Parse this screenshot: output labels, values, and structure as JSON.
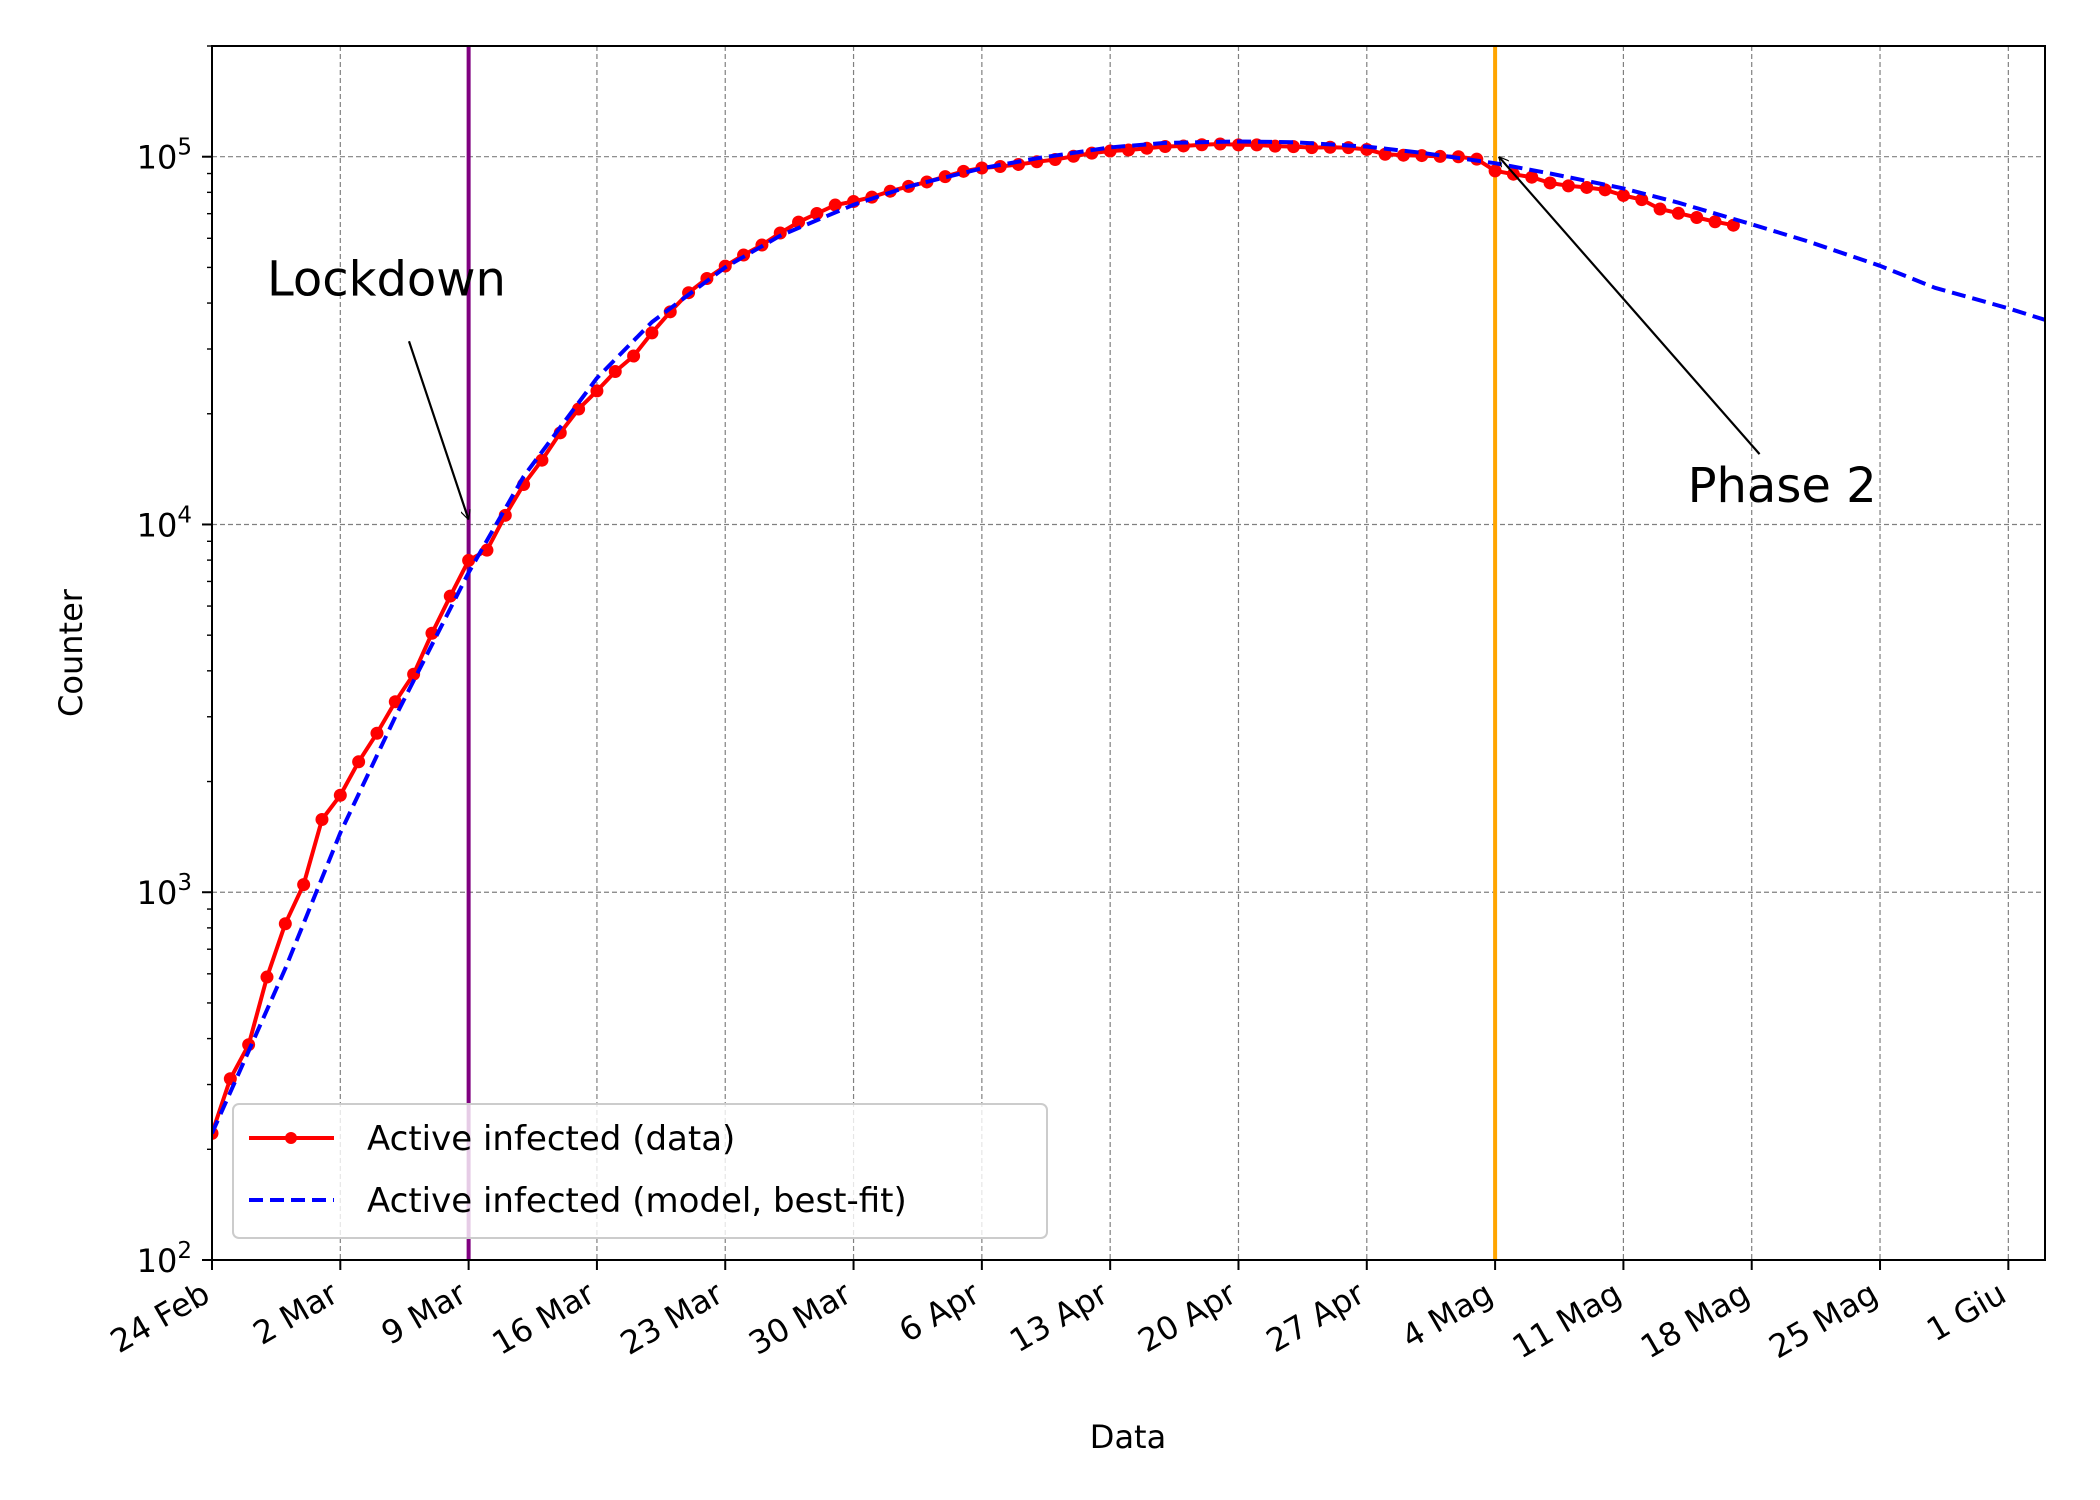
{
  "chart_data": {
    "type": "line",
    "title": "",
    "xlabel": "Data",
    "ylabel": "Counter",
    "yscale": "log",
    "ylim": [
      100,
      200000
    ],
    "xlim_days_from_24feb": [
      0,
      100
    ],
    "grid": true,
    "legend_position": "lower-left",
    "x_ticks": [
      {
        "day": 0,
        "label": "24 Feb"
      },
      {
        "day": 7,
        "label": "2 Mar"
      },
      {
        "day": 14,
        "label": "9 Mar"
      },
      {
        "day": 21,
        "label": "16 Mar"
      },
      {
        "day": 28,
        "label": "23 Mar"
      },
      {
        "day": 35,
        "label": "30 Mar"
      },
      {
        "day": 42,
        "label": "6 Apr"
      },
      {
        "day": 49,
        "label": "13 Apr"
      },
      {
        "day": 56,
        "label": "20 Apr"
      },
      {
        "day": 63,
        "label": "27 Apr"
      },
      {
        "day": 70,
        "label": "4 Mag"
      },
      {
        "day": 77,
        "label": "11 Mag"
      },
      {
        "day": 84,
        "label": "18 Mag"
      },
      {
        "day": 91,
        "label": "25 Mag"
      },
      {
        "day": 98,
        "label": "1 Giu"
      }
    ],
    "y_ticks": [
      {
        "value": 100,
        "base": "10",
        "exp": "2"
      },
      {
        "value": 1000,
        "base": "10",
        "exp": "3"
      },
      {
        "value": 10000,
        "base": "10",
        "exp": "4"
      },
      {
        "value": 100000,
        "base": "10",
        "exp": "5"
      }
    ],
    "series": [
      {
        "name": "Active infected (data)",
        "color": "#ff0000",
        "style": "solid-with-dots",
        "x_days_from_24feb": [
          0,
          1,
          2,
          3,
          4,
          5,
          6,
          7,
          8,
          9,
          10,
          11,
          12,
          13,
          14,
          15,
          16,
          17,
          18,
          19,
          20,
          21,
          22,
          23,
          24,
          25,
          26,
          27,
          28,
          29,
          30,
          31,
          32,
          33,
          34,
          35,
          36,
          37,
          38,
          39,
          40,
          41,
          42,
          43,
          44,
          45,
          46,
          47,
          48,
          49,
          50,
          51,
          52,
          53,
          54,
          55,
          56,
          57,
          58,
          59,
          60,
          61,
          62,
          63,
          64,
          65,
          66,
          67,
          68,
          69,
          70,
          71,
          72,
          73,
          74,
          75,
          76,
          77,
          78,
          79,
          80,
          81,
          82,
          83
        ],
        "y": [
          221,
          311,
          385,
          588,
          821,
          1049,
          1577,
          1835,
          2263,
          2706,
          3296,
          3916,
          5061,
          6387,
          7985,
          8514,
          10590,
          12839,
          14955,
          17750,
          20603,
          23073,
          26062,
          28710,
          33190,
          37860,
          42681,
          46638,
          50418,
          54030,
          57521,
          62013,
          66414,
          70065,
          73880,
          75528,
          77635,
          80572,
          83049,
          85388,
          88274,
          91246,
          93187,
          94067,
          95262,
          96877,
          98273,
          100269,
          102253,
          103616,
          104291,
          105418,
          106607,
          106962,
          107771,
          108257,
          107709,
          107699,
          106848,
          106527,
          105847,
          106103,
          105813,
          104657,
          101551,
          100943,
          100704,
          100179,
          99980,
          98467,
          91528,
          89624,
          87961,
          84842,
          83324,
          82488,
          81266,
          78457,
          76440,
          72070,
          70187,
          68351,
          66553,
          65129
        ]
      },
      {
        "name": "Active infected (model, best-fit)",
        "color": "#0000ff",
        "style": "dashed",
        "x_days_from_24feb": [
          0,
          2,
          4,
          7,
          10,
          14,
          17,
          21,
          24,
          28,
          31,
          35,
          38,
          42,
          45,
          49,
          52,
          56,
          59,
          63,
          66,
          70,
          73,
          77,
          80,
          84,
          87,
          91,
          94,
          98,
          100
        ],
        "y": [
          221,
          370,
          620,
          1450,
          3000,
          7400,
          13500,
          25000,
          35500,
          50000,
          61000,
          74000,
          83000,
          93000,
          99000,
          106000,
          109000,
          110000,
          109500,
          106500,
          102500,
          96000,
          90000,
          82000,
          75000,
          65500,
          59000,
          50500,
          44000,
          38700,
          36000
        ]
      }
    ],
    "vertical_lines": [
      {
        "day": 14,
        "color": "#800080"
      },
      {
        "day": 70,
        "color": "#ffa500"
      }
    ],
    "annotations": [
      {
        "text": "Lockdown",
        "text_day": 3.0,
        "text_value": 42000,
        "arrow_to_day": 14,
        "arrow_to_value": 10300
      },
      {
        "text": "Phase 2",
        "text_day": 80.5,
        "text_value": 11500,
        "arrow_to_day": 70.2,
        "arrow_to_value": 100000
      }
    ]
  }
}
